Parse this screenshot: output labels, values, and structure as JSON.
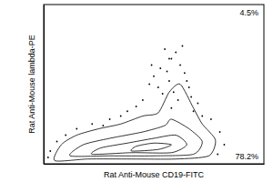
{
  "chart_data": {
    "type": "contour",
    "x_label": "Rat Anti-Mouse CD19-FITC",
    "y_label": "Rat Anti-Mouse lambda-PE",
    "annotations": [
      "4.5%",
      "78.2%"
    ],
    "tick_labels": false,
    "color": "#000000",
    "xlim": [
      0,
      100
    ],
    "ylim": [
      0,
      100
    ],
    "contours": [
      {
        "x": [
          5,
          20,
          40,
          60,
          75,
          78,
          72,
          68,
          62,
          57,
          52,
          45,
          35,
          25,
          15,
          8
        ],
        "y": [
          2,
          3,
          3,
          3,
          5,
          15,
          25,
          35,
          50,
          45,
          32,
          30,
          25,
          22,
          18,
          12
        ]
      },
      {
        "x": [
          12,
          30,
          50,
          68,
          72,
          66,
          58,
          55,
          45,
          30,
          18
        ],
        "y": [
          5,
          5,
          5,
          6,
          14,
          22,
          28,
          24,
          20,
          16,
          12
        ]
      },
      {
        "x": [
          22,
          40,
          58,
          65,
          60,
          50,
          38,
          26
        ],
        "y": [
          6,
          7,
          7,
          12,
          18,
          16,
          13,
          10
        ]
      },
      {
        "x": [
          40,
          52,
          58,
          50,
          42
        ],
        "y": [
          8,
          9,
          12,
          13,
          11
        ]
      }
    ],
    "x": [
      50,
      53,
      56,
      58,
      60,
      55,
      62,
      64,
      52,
      48,
      57,
      59,
      61,
      66,
      67,
      70,
      72,
      45,
      42,
      38,
      30,
      22,
      15,
      10,
      6,
      3,
      2,
      80,
      82,
      79,
      76,
      63,
      57,
      54,
      65,
      49,
      58,
      68,
      35,
      27
    ],
    "y": [
      55,
      60,
      58,
      66,
      70,
      72,
      62,
      57,
      48,
      50,
      52,
      45,
      40,
      48,
      42,
      38,
      30,
      40,
      36,
      33,
      28,
      25,
      22,
      18,
      14,
      8,
      4,
      20,
      12,
      6,
      28,
      74,
      66,
      44,
      52,
      62,
      35,
      33,
      30,
      24
    ]
  }
}
